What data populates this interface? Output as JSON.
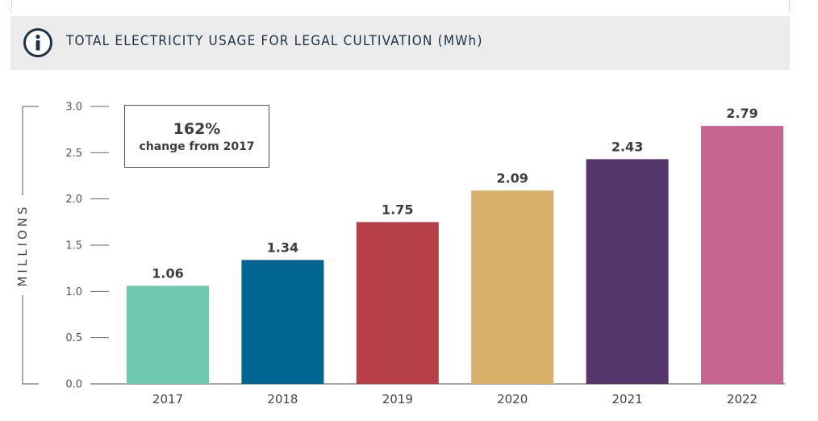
{
  "header": {
    "title": "TOTAL ELECTRICITY USAGE FOR LEGAL CULTIVATION (MWh)",
    "icon": "info-icon",
    "background": "#ececec",
    "title_color": "#1b3345"
  },
  "callout": {
    "value": "162%",
    "text": "change from 2017"
  },
  "chart_data": {
    "type": "bar",
    "title": "TOTAL ELECTRICITY USAGE FOR LEGAL CULTIVATION (MWh)",
    "xlabel": "",
    "ylabel": "MILLIONS",
    "categories": [
      "2017",
      "2018",
      "2019",
      "2020",
      "2021",
      "2022"
    ],
    "values": [
      1.06,
      1.34,
      1.75,
      2.09,
      2.43,
      2.79
    ],
    "value_labels": [
      "1.06",
      "1.34",
      "1.75",
      "2.09",
      "2.43",
      "2.79"
    ],
    "colors": [
      "#6fc7ae",
      "#006590",
      "#b63e47",
      "#d8b06a",
      "#55366b",
      "#c76592"
    ],
    "ylim": [
      0,
      3.0
    ],
    "yticks": [
      0.0,
      0.5,
      1.0,
      1.5,
      2.0,
      2.5,
      3.0
    ],
    "ytick_labels": [
      "0.0",
      "0.5",
      "1.0",
      "1.5",
      "2.0",
      "2.5",
      "3.0"
    ],
    "grid": false,
    "legend": "none"
  }
}
